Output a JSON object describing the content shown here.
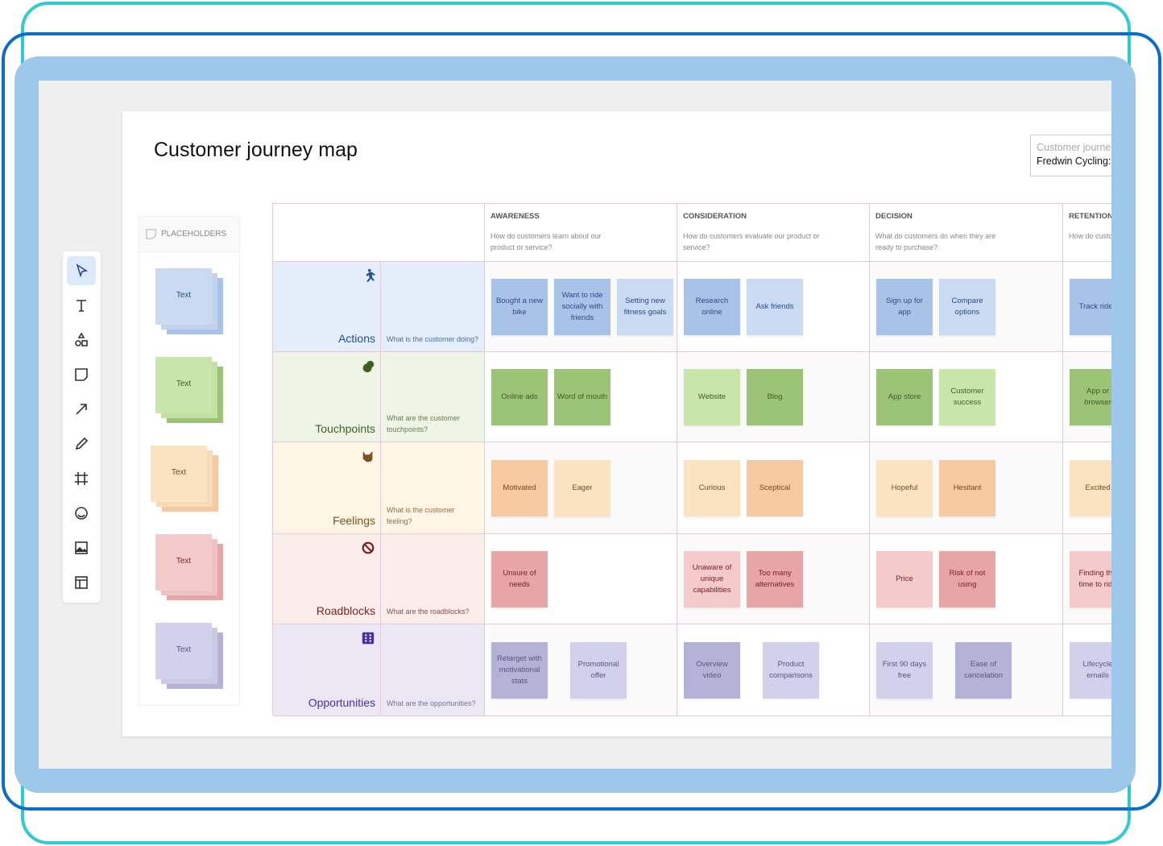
{
  "title": "Customer journey map",
  "info": {
    "line1": "Customer journe",
    "line2": "Fredwin Cycling:"
  },
  "toolbar": [
    {
      "name": "select-tool",
      "icon": "cursor-icon"
    },
    {
      "name": "text-tool",
      "icon": "text-icon"
    },
    {
      "name": "shapes-tool",
      "icon": "shapes-icon"
    },
    {
      "name": "sticky-note-tool",
      "icon": "sticky-note-icon"
    },
    {
      "name": "arrow-tool",
      "icon": "arrow-icon"
    },
    {
      "name": "pen-tool",
      "icon": "pen-icon"
    },
    {
      "name": "frame-tool",
      "icon": "frame-icon"
    },
    {
      "name": "sticker-tool",
      "icon": "sticker-icon"
    },
    {
      "name": "image-tool",
      "icon": "image-icon"
    },
    {
      "name": "template-tool",
      "icon": "template-icon"
    }
  ],
  "placeholders": {
    "header": "PLACEHOLDERS",
    "items": [
      "Text",
      "Text",
      "Text",
      "Text",
      "Text"
    ]
  },
  "stages": [
    {
      "title": "AWARENESS",
      "question": "How do customers learn about our product or service?"
    },
    {
      "title": "CONSIDERATION",
      "question": "How do customers evaluate our product or service?"
    },
    {
      "title": "DECISION",
      "question": "What do customers do when they are ready to purchase?"
    },
    {
      "title": "RETENTION",
      "question": "How do customers"
    }
  ],
  "rows": [
    {
      "label": "Actions",
      "question": "What is the customer doing?",
      "icon": "running-person-icon",
      "color": "#1F4E9C",
      "cells": [
        [
          "Bought a new bike",
          "Want to ride socially with friends",
          "Setting new fitness goals"
        ],
        [
          "Research online",
          "Ask friends"
        ],
        [
          "Sign up for app",
          "Compare options"
        ],
        [
          "Track rides"
        ]
      ],
      "shades": [
        [
          1,
          1,
          0
        ],
        [
          1,
          0
        ],
        [
          1,
          0
        ],
        [
          1
        ]
      ]
    },
    {
      "label": "Touchpoints",
      "question": "What are the customer touchpoints?",
      "icon": "clapping-hands-icon",
      "color": "#3E5E22",
      "cells": [
        [
          "Online ads",
          "Word of mouth"
        ],
        [
          "Website",
          "Blog"
        ],
        [
          "App store",
          "Customer success"
        ],
        [
          "App or browser"
        ]
      ],
      "shades": [
        [
          1,
          1
        ],
        [
          0,
          1
        ],
        [
          1,
          0
        ],
        [
          1
        ]
      ]
    },
    {
      "label": "Feelings",
      "question": "What is the customer feeling?",
      "icon": "cat-icon",
      "color": "#7A5220",
      "cells": [
        [
          "Motivated",
          "Eager"
        ],
        [
          "Curious",
          "Sceptical"
        ],
        [
          "Hopeful",
          "Hesitant"
        ],
        [
          "Excited"
        ]
      ],
      "shades": [
        [
          1,
          0
        ],
        [
          0,
          1
        ],
        [
          0,
          1
        ],
        [
          0
        ]
      ]
    },
    {
      "label": "Roadblocks",
      "question": "What are the roadblocks?",
      "icon": "prohibited-icon",
      "color": "#7A2323",
      "cells": [
        [
          "Unsure of needs"
        ],
        [
          "Unaware of unique capabilities",
          "Too many alternatives"
        ],
        [
          "Price",
          "Risk of not using"
        ],
        [
          "Finding the time to ride"
        ]
      ],
      "shades": [
        [
          1
        ],
        [
          0,
          1
        ],
        [
          0,
          1
        ],
        [
          0
        ]
      ]
    },
    {
      "label": "Opportunities",
      "question": "What are the opportunities?",
      "icon": "dice-icon",
      "color": "#4B2DA8",
      "cells": [
        [
          "Retarget with motivational stats",
          "Promotional offer"
        ],
        [
          "Overview video",
          "Product comparisons"
        ],
        [
          "First 90 days free",
          "Ease of cancelation"
        ],
        [
          "Lifecycle emails"
        ]
      ],
      "shades": [
        [
          1,
          0
        ],
        [
          1,
          0
        ],
        [
          0,
          1
        ],
        [
          0
        ]
      ]
    }
  ],
  "palette": {
    "Actions": {
      "row": "#E3EEFA",
      "dark": "#A9C3E8",
      "light": "#C9DAF2",
      "text": "#2B4C8C"
    },
    "Touchpoints": {
      "row": "#EEF5E7",
      "dark": "#9CC477",
      "light": "#C8E6A9",
      "text": "#3E5E22"
    },
    "Feelings": {
      "row": "#FEF6E4",
      "dark": "#F6C9A0",
      "light": "#FBE3C2",
      "text": "#7A4A1E"
    },
    "Roadblocks": {
      "row": "#FBEDEA",
      "dark": "#E8A5A5",
      "light": "#F4CACA",
      "text": "#7A2323"
    },
    "Opportunities": {
      "row": "#ECE8F3",
      "dark": "#B5B2D8",
      "light": "#D2D0EA",
      "text": "#5A5680"
    }
  }
}
